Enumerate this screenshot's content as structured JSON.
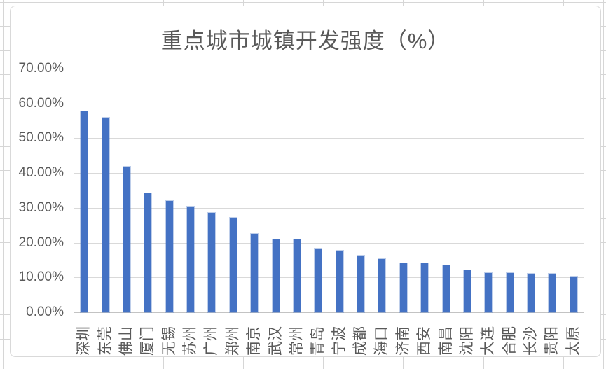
{
  "app": {
    "context": "excel-embedded-chart"
  },
  "chart": {
    "title": "重点城市城镇开发强度（%）",
    "y_axis_labels": [
      "0.00%",
      "10.00%",
      "20.00%",
      "30.00%",
      "40.00%",
      "50.00%",
      "60.00%",
      "70.00%"
    ],
    "colors": {
      "bar": "#4472C4",
      "gridline": "#D9D9D9",
      "axis_line": "#C3C3C3",
      "text": "#595959",
      "chart_border": "#D9D9D9",
      "sheet_gridline": "#D6D6D6",
      "background": "#FFFFFF"
    }
  },
  "chart_data": {
    "type": "bar",
    "title": "重点城市城镇开发强度（%）",
    "categories": [
      "深圳",
      "东莞",
      "佛山",
      "厦门",
      "无锡",
      "苏州",
      "广州",
      "郑州",
      "南京",
      "武汉",
      "常州",
      "青岛",
      "宁波",
      "成都",
      "海口",
      "济南",
      "西安",
      "南昌",
      "沈阳",
      "大连",
      "合肥",
      "长沙",
      "贵阳",
      "太原"
    ],
    "values": [
      57.8,
      56.0,
      41.8,
      34.1,
      32.0,
      30.4,
      28.6,
      27.1,
      22.6,
      21.0,
      20.9,
      18.3,
      17.7,
      16.3,
      15.2,
      14.0,
      14.0,
      13.4,
      12.0,
      11.3,
      11.2,
      11.0,
      11.0,
      10.3
    ],
    "unit": "%",
    "xlabel": "",
    "ylabel": "",
    "ylim": [
      0,
      70
    ],
    "ytick_step": 10,
    "ytick_format": "0.00%",
    "grid": true,
    "legend": false,
    "bar_color": "#4472C4",
    "category_label_rotation_deg": -90
  }
}
